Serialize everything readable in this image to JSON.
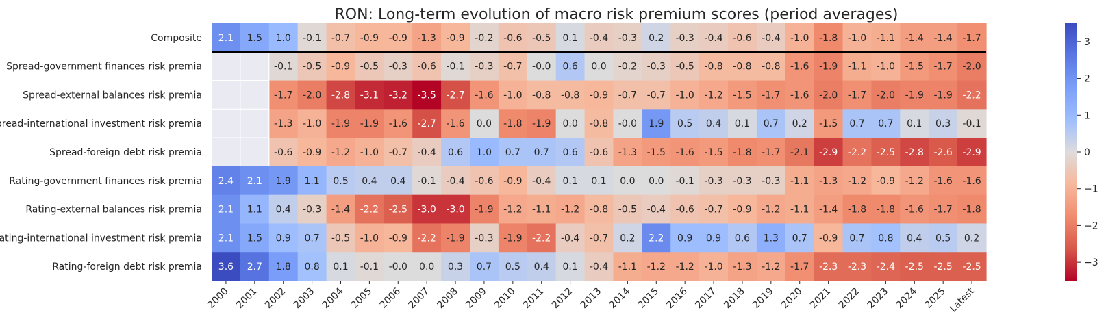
{
  "chart_data": {
    "type": "heatmap",
    "title": "RON: Long-term evolution of macro risk premium scores (period averages)",
    "xlabel": "",
    "ylabel": "",
    "columns": [
      "2000",
      "2001",
      "2002",
      "2003",
      "2004",
      "2005",
      "2006",
      "2007",
      "2008",
      "2009",
      "2010",
      "2011",
      "2012",
      "2013",
      "2014",
      "2015",
      "2016",
      "2017",
      "2018",
      "2019",
      "2020",
      "2021",
      "2022",
      "2023",
      "2024",
      "2025",
      "Latest"
    ],
    "rows": [
      "Composite",
      "Spread-government finances risk premia",
      "Spread-external balances risk premia",
      "Spread-international investment risk premia",
      "Spread-foreign debt risk premia",
      "Rating-government finances risk premia",
      "Rating-external balances risk premia",
      "Rating-international investment risk premia",
      "Rating-foreign debt risk premia"
    ],
    "values": [
      [
        2.1,
        1.5,
        1.0,
        -0.1,
        -0.7,
        -0.9,
        -0.9,
        -1.3,
        -0.9,
        -0.2,
        -0.6,
        -0.5,
        0.1,
        -0.4,
        -0.3,
        0.2,
        -0.3,
        -0.4,
        -0.6,
        -0.4,
        -1.0,
        -1.8,
        -1.0,
        -1.1,
        -1.4,
        -1.4,
        -1.7
      ],
      [
        null,
        null,
        -0.1,
        -0.5,
        -0.9,
        -0.5,
        -0.3,
        -0.6,
        -0.1,
        -0.3,
        -0.7,
        -0.0,
        0.6,
        0.0,
        -0.2,
        -0.3,
        -0.5,
        -0.8,
        -0.8,
        -0.8,
        -1.6,
        -1.9,
        -1.1,
        -1.0,
        -1.5,
        -1.7,
        -2.0
      ],
      [
        null,
        null,
        -1.7,
        -2.0,
        -2.8,
        -3.1,
        -3.2,
        -3.5,
        -2.7,
        -1.6,
        -1.0,
        -0.8,
        -0.8,
        -0.9,
        -0.7,
        -0.7,
        -1.0,
        -1.2,
        -1.5,
        -1.7,
        -1.6,
        -2.0,
        -1.7,
        -2.0,
        -1.9,
        -1.9,
        -2.2
      ],
      [
        null,
        null,
        -1.3,
        -1.0,
        -1.9,
        -1.9,
        -1.6,
        -2.7,
        -1.6,
        0.0,
        -1.8,
        -1.9,
        0.0,
        -0.8,
        -0.0,
        1.9,
        0.5,
        0.4,
        0.1,
        0.7,
        0.2,
        -1.5,
        0.7,
        0.7,
        0.1,
        0.3,
        -0.1
      ],
      [
        null,
        null,
        -0.6,
        -0.9,
        -1.2,
        -1.0,
        -0.7,
        -0.4,
        0.6,
        1.0,
        0.7,
        0.7,
        0.6,
        -0.6,
        -1.3,
        -1.5,
        -1.6,
        -1.5,
        -1.8,
        -1.7,
        -2.1,
        -2.9,
        -2.2,
        -2.5,
        -2.8,
        -2.6,
        -2.9
      ],
      [
        2.4,
        2.1,
        1.9,
        1.1,
        0.5,
        0.4,
        0.4,
        -0.1,
        -0.4,
        -0.6,
        -0.9,
        -0.4,
        0.1,
        0.1,
        0.0,
        0.0,
        -0.1,
        -0.3,
        -0.3,
        -0.3,
        -1.1,
        -1.3,
        -1.2,
        -0.9,
        -1.2,
        -1.6,
        -1.6
      ],
      [
        2.1,
        1.1,
        0.4,
        -0.3,
        -1.4,
        -2.2,
        -2.5,
        -3.0,
        -3.0,
        -1.9,
        -1.2,
        -1.1,
        -1.2,
        -0.8,
        -0.5,
        -0.4,
        -0.6,
        -0.7,
        -0.9,
        -1.2,
        -1.1,
        -1.4,
        -1.8,
        -1.8,
        -1.6,
        -1.7,
        -1.8
      ],
      [
        2.1,
        1.5,
        0.9,
        0.7,
        -0.5,
        -1.0,
        -0.9,
        -2.2,
        -1.9,
        -0.3,
        -1.9,
        -2.2,
        -0.4,
        -0.7,
        0.2,
        2.2,
        0.9,
        0.9,
        0.6,
        1.3,
        0.7,
        -0.9,
        0.7,
        0.8,
        0.4,
        0.5,
        0.2
      ],
      [
        3.6,
        2.7,
        1.8,
        0.8,
        0.1,
        -0.1,
        -0.0,
        0.0,
        0.3,
        0.7,
        0.5,
        0.4,
        0.1,
        -0.4,
        -1.1,
        -1.2,
        -1.2,
        -1.0,
        -1.3,
        -1.2,
        -1.7,
        -2.3,
        -2.3,
        -2.4,
        -2.5,
        -2.5,
        -2.5
      ]
    ],
    "color_range": [
      -3.5,
      3.5
    ],
    "colormap": "coolwarm",
    "colorbar_ticks": [
      3,
      2,
      1,
      0,
      -1,
      -2,
      -3
    ],
    "missing_color": "#eaeaf2",
    "separator_after_row": 0,
    "grid": false
  }
}
